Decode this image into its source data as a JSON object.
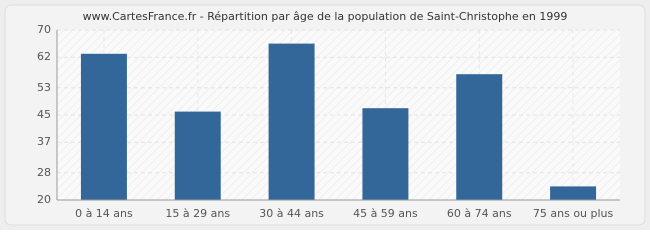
{
  "chart_data": {
    "type": "bar",
    "title": "www.CartesFrance.fr - Répartition par âge de la population de Saint-Christophe en 1999",
    "categories": [
      "0 à 14 ans",
      "15 à 29 ans",
      "30 à 44 ans",
      "45 à 59 ans",
      "60 à 74 ans",
      "75 ans ou plus"
    ],
    "values": [
      63,
      46,
      66,
      47,
      57,
      24
    ],
    "color": "#336699",
    "ylim": [
      20,
      70
    ],
    "yticks": [
      20,
      28,
      37,
      45,
      53,
      62,
      70
    ],
    "grid": true
  }
}
